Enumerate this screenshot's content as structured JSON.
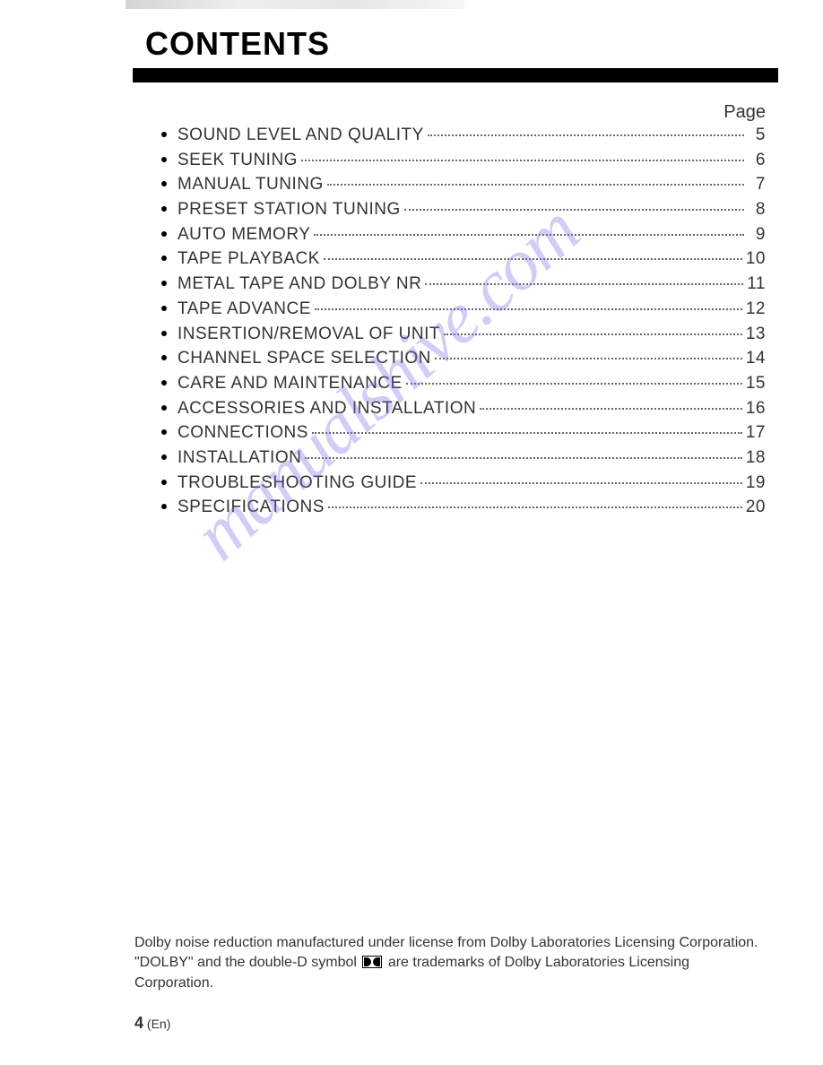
{
  "header": {
    "title": "CONTENTS"
  },
  "page_label": "Page",
  "toc": [
    {
      "title": "SOUND LEVEL AND QUALITY",
      "page": "5"
    },
    {
      "title": "SEEK TUNING",
      "page": "6"
    },
    {
      "title": "MANUAL TUNING",
      "page": "7"
    },
    {
      "title": "PRESET STATION TUNING",
      "page": "8"
    },
    {
      "title": "AUTO MEMORY",
      "page": "9"
    },
    {
      "title": "TAPE PLAYBACK",
      "page": "10"
    },
    {
      "title": "METAL TAPE AND DOLBY NR",
      "page": "11"
    },
    {
      "title": "TAPE ADVANCE",
      "page": "12"
    },
    {
      "title": "INSERTION/REMOVAL OF UNIT",
      "page": "13"
    },
    {
      "title": "CHANNEL SPACE SELECTION",
      "page": "14"
    },
    {
      "title": "CARE AND MAINTENANCE",
      "page": "15"
    },
    {
      "title": "ACCESSORIES AND INSTALLATION",
      "page": "16"
    },
    {
      "title": "CONNECTIONS",
      "page": "17"
    },
    {
      "title": "INSTALLATION",
      "page": "18"
    },
    {
      "title": "TROUBLESHOOTING GUIDE",
      "page": "19"
    },
    {
      "title": "SPECIFICATIONS",
      "page": "20"
    }
  ],
  "watermark": "manualshive.com",
  "footer": {
    "line1": "Dolby noise reduction manufactured under license from Dolby Laboratories Licensing Corporation.",
    "line2_pre": "\"DOLBY\" and the double-D symbol ",
    "line2_post": " are trademarks of Dolby Laboratories Licensing Corporation."
  },
  "page_number": {
    "num": "4",
    "lang": "(En)"
  },
  "colors": {
    "text": "#333333",
    "bar": "#000000",
    "watermark": "rgba(130,110,230,0.35)",
    "background": "#ffffff"
  }
}
